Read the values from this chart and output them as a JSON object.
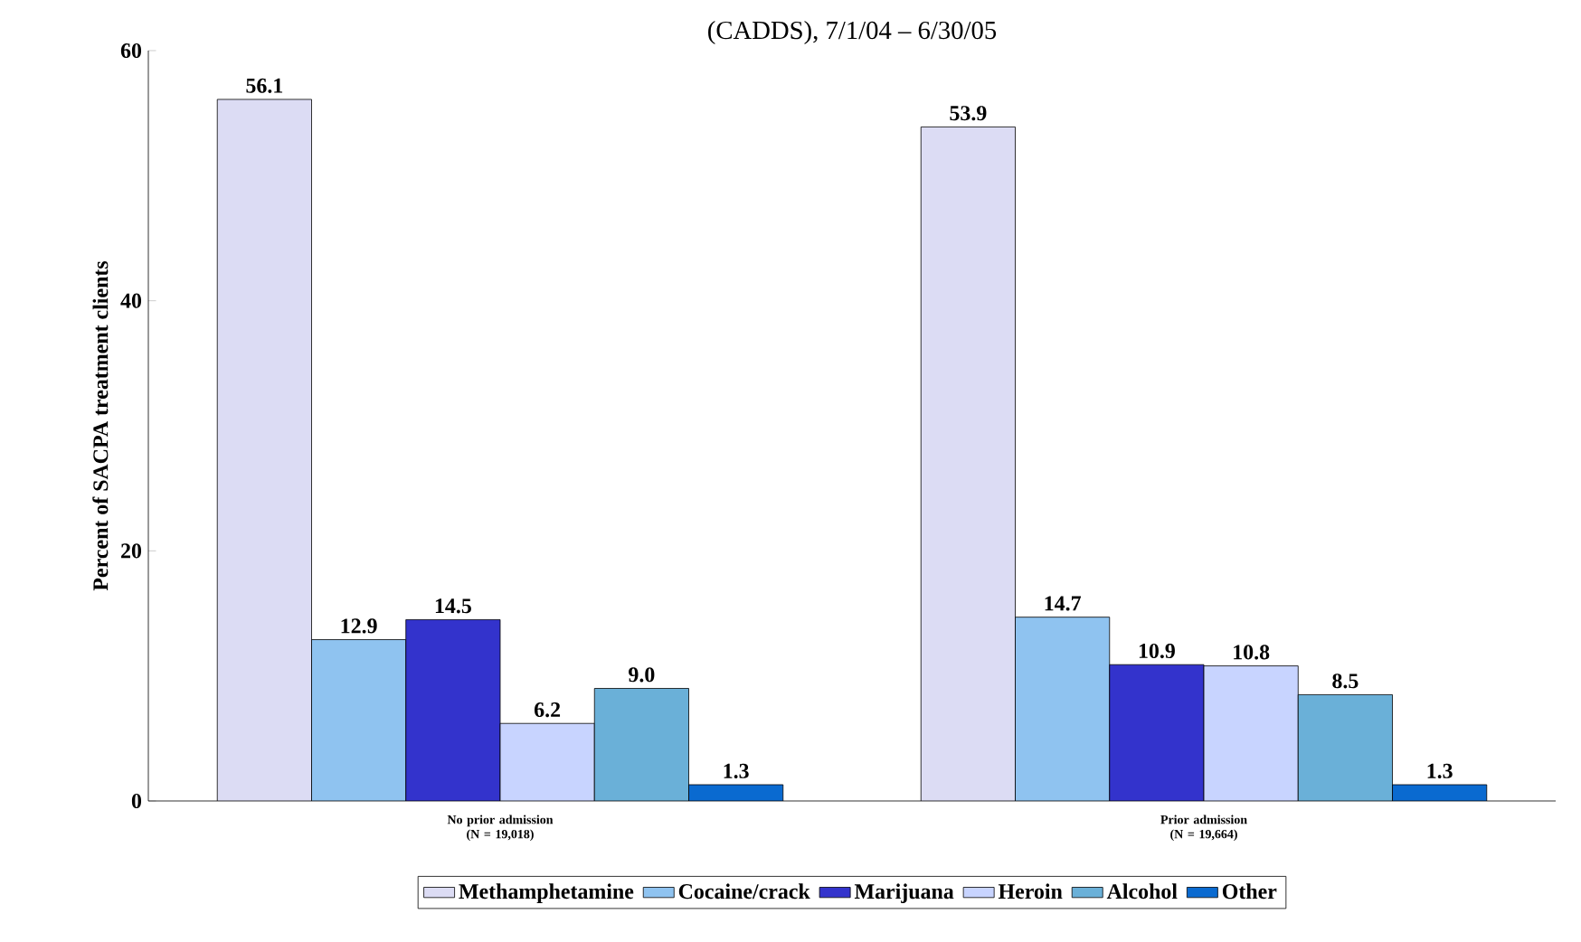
{
  "chart_data": {
    "type": "bar",
    "title": "(CADDS), 7/1/04 – 6/30/05",
    "ylabel": "Percent of SACPA treatment clients",
    "categories": [
      "No prior admission (N = 19,018)",
      "Prior admission (N = 19,664)"
    ],
    "series": [
      {
        "name": "Methamphetamine",
        "color": "#dcdcf4",
        "values": [
          56.1,
          53.9
        ],
        "value_labels": [
          "56.1",
          "53.9"
        ]
      },
      {
        "name": "Cocaine/crack",
        "color": "#8fc3f0",
        "values": [
          12.9,
          14.7
        ],
        "value_labels": [
          "12.9",
          "14.7"
        ]
      },
      {
        "name": "Marijuana",
        "color": "#3333cc",
        "values": [
          14.5,
          10.9
        ],
        "value_labels": [
          "14.5",
          "10.9"
        ]
      },
      {
        "name": "Heroin",
        "color": "#c8d4ff",
        "values": [
          6.2,
          10.8
        ],
        "value_labels": [
          "6.2",
          "10.8"
        ]
      },
      {
        "name": "Alcohol",
        "color": "#6ab0d8",
        "values": [
          9.0,
          8.5
        ],
        "value_labels": [
          "9.0",
          "8.5"
        ]
      },
      {
        "name": "Other",
        "color": "#0a6ad0",
        "values": [
          1.3,
          1.3
        ],
        "value_labels": [
          "1.3",
          "1.3"
        ]
      }
    ],
    "ylim": [
      0,
      60
    ],
    "yticks": [
      0,
      20,
      40,
      60
    ],
    "grid": false,
    "legend": "bottom"
  }
}
